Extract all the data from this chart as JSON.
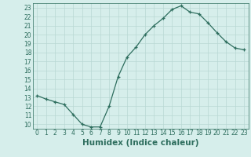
{
  "x": [
    0,
    1,
    2,
    3,
    4,
    5,
    6,
    7,
    8,
    9,
    10,
    11,
    12,
    13,
    14,
    15,
    16,
    17,
    18,
    19,
    20,
    21,
    22,
    23
  ],
  "y": [
    13.2,
    12.8,
    12.5,
    12.2,
    11.1,
    10.0,
    9.7,
    9.7,
    12.0,
    15.3,
    17.5,
    18.6,
    20.0,
    21.0,
    21.8,
    22.8,
    23.2,
    22.5,
    22.3,
    21.3,
    20.2,
    19.2,
    18.5,
    18.3
  ],
  "line_color": "#2e6e5e",
  "marker": "+",
  "bg_color": "#d6eeeb",
  "grid_color": "#b8d8d4",
  "xlabel": "Humidex (Indice chaleur)",
  "ylim": [
    9.5,
    23.5
  ],
  "xlim": [
    -0.5,
    23.5
  ],
  "yticks": [
    10,
    11,
    12,
    13,
    14,
    15,
    16,
    17,
    18,
    19,
    20,
    21,
    22,
    23
  ],
  "xticks": [
    0,
    1,
    2,
    3,
    4,
    5,
    6,
    7,
    8,
    9,
    10,
    11,
    12,
    13,
    14,
    15,
    16,
    17,
    18,
    19,
    20,
    21,
    22,
    23
  ],
  "tick_label_fontsize": 5.5,
  "xlabel_fontsize": 7.5
}
